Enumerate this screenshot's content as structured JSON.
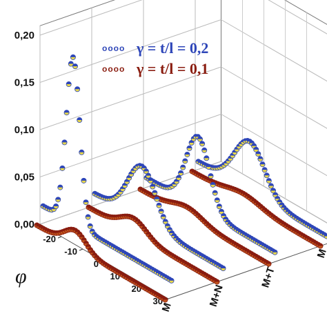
{
  "chart_data": {
    "type": "scatter",
    "projection": "3d",
    "y_axis": {
      "ticks": [
        "0,00",
        "0,05",
        "0,10",
        "0,15",
        "0,20"
      ],
      "range": [
        0,
        0.21
      ]
    },
    "phi_axis": {
      "label": "φ",
      "ticks": [
        "-20",
        "-10",
        "0",
        "10",
        "20",
        "30"
      ],
      "range": [
        -30,
        30
      ]
    },
    "dataset_axis": {
      "ticks": [
        "M",
        "M+N",
        "M+T",
        "M"
      ]
    },
    "series": [
      {
        "legend_marker": "oooo",
        "name": "γ = t/l = 0,2",
        "color": "#2e46b8",
        "face_color": "#e8d84a",
        "peaks": [
          {
            "dataset": 0,
            "phi_center": -16,
            "width": 3.2,
            "amplitude": 0.176,
            "baseline": 0.018
          },
          {
            "dataset": 1,
            "phi_center": -8,
            "width": 6.5,
            "amplitude": 0.058,
            "baseline": 0.012
          },
          {
            "dataset": 2,
            "phi_center": -6,
            "width": 5.5,
            "amplitude": 0.075,
            "baseline": 0.01
          },
          {
            "dataset": 3,
            "phi_center": -6,
            "width": 7.0,
            "amplitude": 0.053,
            "baseline": 0.008
          }
        ]
      },
      {
        "legend_marker": "oooo",
        "name": "γ = t/l = 0,1",
        "color": "#8a1d10",
        "face_color": "#c0541c",
        "peaks": [
          {
            "dataset": 0,
            "phi_center": -12,
            "width": 5.0,
            "amplitude": 0.018,
            "baseline": 0.0
          },
          {
            "dataset": 1,
            "phi_center": -9,
            "width": 6.0,
            "amplitude": 0.016,
            "baseline": 0.0
          },
          {
            "dataset": 2,
            "phi_center": -8,
            "width": 7.0,
            "amplitude": 0.01,
            "baseline": 0.0
          },
          {
            "dataset": 3,
            "phi_center": -6,
            "width": 8.0,
            "amplitude": 0.008,
            "baseline": 0.0
          }
        ]
      }
    ],
    "grid": true,
    "legend_placement": "top-center"
  }
}
